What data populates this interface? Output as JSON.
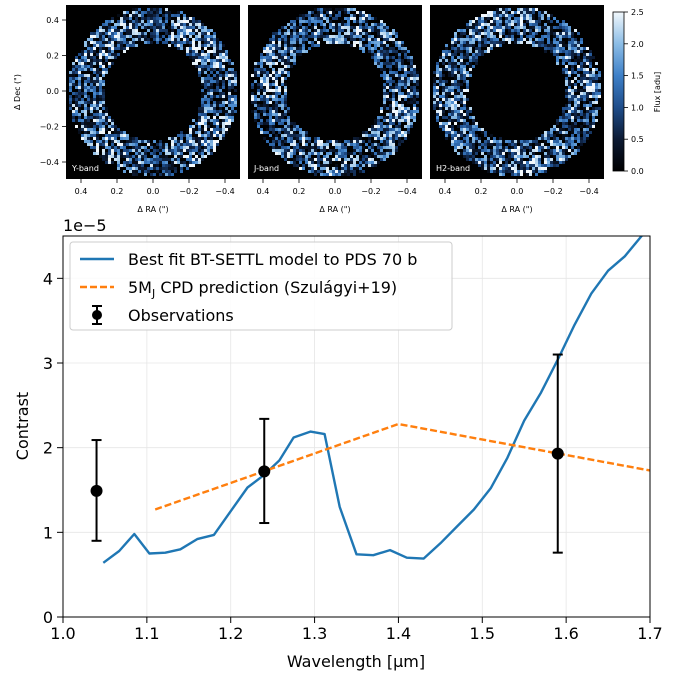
{
  "images": {
    "panels": [
      {
        "label": "Y-band",
        "seed": 11
      },
      {
        "label": "J-band",
        "seed": 23
      },
      {
        "label": "H2-band",
        "seed": 37
      }
    ],
    "xlabel": "Δ RA (\")",
    "ylabel": "Δ Dec (\")",
    "xticks": [
      "0.4",
      "0.2",
      "0.0",
      "−0.2",
      "−0.4"
    ],
    "yticks": [
      "0.4",
      "0.2",
      "0.0",
      "−0.2",
      "−0.4"
    ],
    "colorbar": {
      "label": "Flux [adu]",
      "ticks": [
        "2.5",
        "2.0",
        "1.5",
        "1.0",
        "0.5",
        "0.0"
      ],
      "range": [
        0,
        2.5
      ],
      "colormap": [
        "#000000",
        "#0c1a33",
        "#1f4d8a",
        "#3e80c8",
        "#8cbde6",
        "#f2f8fc"
      ]
    }
  },
  "chart_data": {
    "type": "line",
    "xlabel": "Wavelength [µm]",
    "ylabel": "Contrast",
    "offset_label": "1e−5",
    "xlim": [
      1.0,
      1.7
    ],
    "ylim": [
      0,
      4.5
    ],
    "xticks": [
      "1.0",
      "1.1",
      "1.2",
      "1.3",
      "1.4",
      "1.5",
      "1.6",
      "1.7"
    ],
    "yticks": [
      "0",
      "1",
      "2",
      "3",
      "4"
    ],
    "grid": true,
    "legend_position": "upper-left",
    "series": [
      {
        "name": "Best fit BT-SETTL model to PDS 70 b",
        "color": "#1f77b4",
        "style": "solid",
        "x": [
          1.048,
          1.067,
          1.085,
          1.103,
          1.122,
          1.14,
          1.16,
          1.18,
          1.2,
          1.22,
          1.24,
          1.258,
          1.275,
          1.295,
          1.312,
          1.33,
          1.35,
          1.37,
          1.39,
          1.41,
          1.43,
          1.45,
          1.47,
          1.49,
          1.51,
          1.53,
          1.55,
          1.57,
          1.59,
          1.61,
          1.63,
          1.65,
          1.67,
          1.69,
          1.705
        ],
        "y": [
          0.64,
          0.78,
          0.98,
          0.75,
          0.76,
          0.8,
          0.92,
          0.97,
          1.25,
          1.53,
          1.68,
          1.85,
          2.12,
          2.19,
          2.16,
          1.3,
          0.74,
          0.73,
          0.79,
          0.7,
          0.69,
          0.87,
          1.07,
          1.27,
          1.52,
          1.88,
          2.32,
          2.65,
          3.04,
          3.45,
          3.82,
          4.09,
          4.26,
          4.5,
          4.62
        ]
      },
      {
        "name": "5M_J CPD prediction (Szulágyi+19)",
        "legend_main": "5M",
        "legend_sub": "J",
        "legend_rest": " CPD prediction (Szulágyi+19)",
        "color": "#ff7f0e",
        "style": "dashed",
        "x": [
          1.11,
          1.4,
          1.7
        ],
        "y": [
          1.27,
          2.28,
          1.73
        ]
      }
    ],
    "observations": {
      "name": "Observations",
      "color": "#000000",
      "x": [
        1.04,
        1.24,
        1.59
      ],
      "y": [
        1.49,
        1.72,
        1.93
      ],
      "yerr_low": [
        0.59,
        0.61,
        1.17
      ],
      "yerr_high": [
        0.6,
        0.62,
        1.17
      ]
    }
  }
}
